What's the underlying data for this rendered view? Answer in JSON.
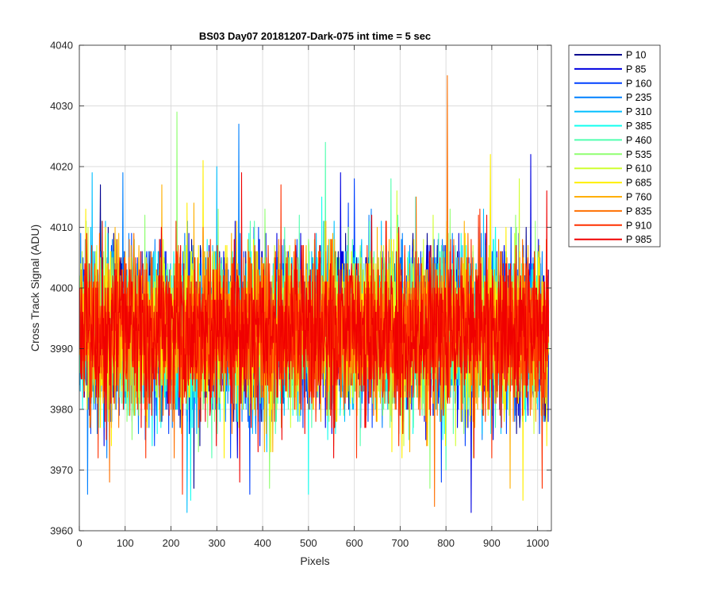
{
  "chart_data": {
    "type": "line",
    "title": "BS03 Day07 20181207-Dark-075 int time = 5 sec",
    "xlabel": "Pixels",
    "ylabel": "Cross Track Signal (ADU)",
    "xlim": [
      0,
      1030
    ],
    "ylim": [
      3960,
      4040
    ],
    "xticks": [
      0,
      100,
      200,
      300,
      400,
      500,
      600,
      700,
      800,
      900,
      1000
    ],
    "yticks": [
      3960,
      3970,
      3980,
      3990,
      4000,
      4010,
      4020,
      4030,
      4040
    ],
    "x_range": [
      1,
      1024
    ],
    "grid": true,
    "legend_position": "outside-top-right",
    "noise_profile": {
      "mean": 3993,
      "std": 6.5
    },
    "series": [
      {
        "name": "P 10",
        "color": "#00008f",
        "spikes": [
          [
            46,
            4017
          ],
          [
            250,
            3967
          ]
        ]
      },
      {
        "name": "P 85",
        "color": "#0000e0",
        "spikes": [
          [
            570,
            4019
          ],
          [
            855,
            3963
          ],
          [
            985,
            4022
          ],
          [
            345,
            3972
          ]
        ]
      },
      {
        "name": "P 160",
        "color": "#0040ff",
        "spikes": [
          [
            372,
            3966
          ],
          [
            600,
            4018
          ],
          [
            790,
            3968
          ]
        ]
      },
      {
        "name": "P 235",
        "color": "#0080ff",
        "spikes": [
          [
            348,
            4027
          ],
          [
            18,
            3966
          ],
          [
            95,
            4019
          ]
        ]
      },
      {
        "name": "P 310",
        "color": "#00bfff",
        "spikes": [
          [
            235,
            3963
          ],
          [
            300,
            4020
          ],
          [
            28,
            4019
          ]
        ]
      },
      {
        "name": "P 385",
        "color": "#10ffef",
        "spikes": [
          [
            243,
            3965
          ],
          [
            500,
            3966
          ]
        ]
      },
      {
        "name": "P 460",
        "color": "#50ffaf",
        "spikes": [
          [
            537,
            4024
          ],
          [
            800,
            3970
          ],
          [
            680,
            4018
          ]
        ]
      },
      {
        "name": "P 535",
        "color": "#8fff70",
        "spikes": [
          [
            213,
            4029
          ],
          [
            415,
            3967
          ],
          [
            765,
            3967
          ]
        ]
      },
      {
        "name": "P 610",
        "color": "#cfff30",
        "spikes": [
          [
            960,
            4018
          ],
          [
            860,
            3972
          ]
        ]
      },
      {
        "name": "P 685",
        "color": "#ffef00",
        "spikes": [
          [
            897,
            4022
          ],
          [
            968,
            3965
          ],
          [
            270,
            4021
          ]
        ]
      },
      {
        "name": "P 760",
        "color": "#ffaf00",
        "spikes": [
          [
            940,
            3967
          ],
          [
            180,
            4017
          ]
        ]
      },
      {
        "name": "P 835",
        "color": "#ff7000",
        "spikes": [
          [
            803,
            4035
          ],
          [
            66,
            3968
          ],
          [
            775,
            3964
          ]
        ]
      },
      {
        "name": "P 910",
        "color": "#ff3000",
        "spikes": [
          [
            225,
            3966
          ],
          [
            1010,
            3967
          ],
          [
            440,
            4017
          ]
        ]
      },
      {
        "name": "P 985",
        "color": "#f00000",
        "spikes": [
          [
            350,
            3968
          ],
          [
            1020,
            4016
          ],
          [
            354,
            4019
          ],
          [
            1025,
            3967
          ]
        ]
      }
    ]
  }
}
